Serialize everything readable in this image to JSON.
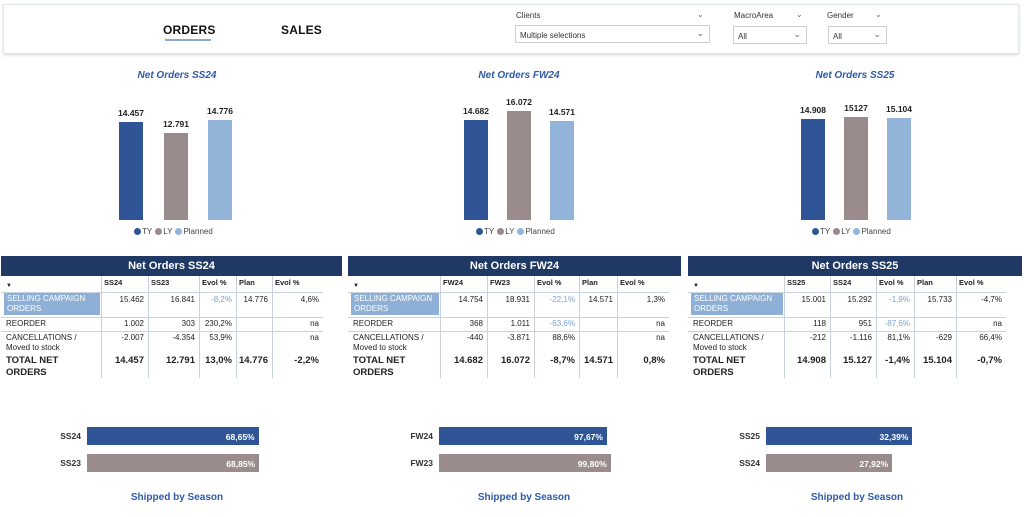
{
  "header": {
    "tabs": [
      {
        "label": "ORDERS",
        "active": true
      },
      {
        "label": "SALES",
        "active": false
      }
    ],
    "filters": [
      {
        "title": "Clients",
        "value": "Multiple selections"
      },
      {
        "title": "MacroArea",
        "value": "All"
      },
      {
        "title": "Gender",
        "value": "All"
      }
    ]
  },
  "colors": {
    "ty": "#2f5597",
    "ly": "#9a8c8c",
    "planned": "#92b4d8",
    "table_head": "#1f3864",
    "accent": "#2e5aa8"
  },
  "legend": {
    "ty": "TY",
    "ly": "LY",
    "planned": "Planned"
  },
  "icons": {
    "chevron": "chevron-down-icon",
    "sort": "sort-arrow-icon"
  },
  "chart_data": [
    {
      "type": "bar",
      "title": "Net Orders SS24",
      "categories": [
        "TY",
        "LY",
        "Planned"
      ],
      "values": [
        14457,
        12791,
        14776
      ],
      "labels": [
        "14.457",
        "12.791",
        "14.776"
      ],
      "ylim": [
        0,
        16072
      ]
    },
    {
      "type": "bar",
      "title": "Net Orders FW24",
      "categories": [
        "TY",
        "LY",
        "Planned"
      ],
      "values": [
        14682,
        16072,
        14571
      ],
      "labels": [
        "14.682",
        "16.072",
        "14.571"
      ],
      "ylim": [
        0,
        16072
      ]
    },
    {
      "type": "bar",
      "title": "Net Orders SS25",
      "categories": [
        "TY",
        "LY",
        "Planned"
      ],
      "values": [
        14908,
        15127,
        15104
      ],
      "labels": [
        "14.908",
        "15127",
        "15.104"
      ],
      "ylim": [
        0,
        16072
      ]
    },
    {
      "type": "bar",
      "title": "Shipped by Season",
      "orientation": "horizontal",
      "categories": [
        "SS24",
        "SS23"
      ],
      "values": [
        68.65,
        68.85
      ],
      "labels": [
        "68,65%",
        "68,85%"
      ],
      "xlim": [
        0,
        100
      ]
    },
    {
      "type": "bar",
      "title": "Shipped by Season",
      "orientation": "horizontal",
      "categories": [
        "FW24",
        "FW23"
      ],
      "values": [
        97.67,
        99.8
      ],
      "labels": [
        "97,67%",
        "99,80%"
      ],
      "xlim": [
        0,
        100
      ]
    },
    {
      "type": "bar",
      "title": "Shipped by Season",
      "orientation": "horizontal",
      "categories": [
        "SS25",
        "SS24"
      ],
      "values": [
        32.39,
        27.92
      ],
      "labels": [
        "32,39%",
        "27,92%"
      ],
      "xlim": [
        0,
        100
      ]
    }
  ],
  "tables": [
    {
      "title": "Net Orders SS24",
      "headers": [
        "",
        "SS24",
        "SS23",
        "Evol %",
        "Plan",
        "Evol %"
      ],
      "rows": [
        [
          "SELLING CAMPAIGN ORDERS",
          "15.462",
          "16.841",
          "-8,2%",
          "14.776",
          "4,6%"
        ],
        [
          "REORDER",
          "1.002",
          "303",
          "230,2%",
          "",
          "na"
        ],
        [
          "CANCELLATIONS / Moved to stock",
          "-2.007",
          "-4.354",
          "53,9%",
          "",
          "na"
        ],
        [
          "TOTAL NET ORDERS",
          "14.457",
          "12.791",
          "13,0%",
          "14.776",
          "-2,2%"
        ]
      ]
    },
    {
      "title": "Net Orders FW24",
      "headers": [
        "",
        "FW24",
        "FW23",
        "Evol %",
        "Plan",
        "Evol %"
      ],
      "rows": [
        [
          "SELLING CAMPAIGN ORDERS",
          "14.754",
          "18.931",
          "-22,1%",
          "14.571",
          "1,3%"
        ],
        [
          "REORDER",
          "368",
          "1.011",
          "-63,6%",
          "",
          "na"
        ],
        [
          "CANCELLATIONS / Moved to stock",
          "-440",
          "-3.871",
          "88,6%",
          "",
          "na"
        ],
        [
          "TOTAL NET ORDERS",
          "14.682",
          "16.072",
          "-8,7%",
          "14.571",
          "0,8%"
        ]
      ]
    },
    {
      "title": "Net Orders SS25",
      "headers": [
        "",
        "SS25",
        "SS24",
        "Evol %",
        "Plan",
        "Evol %"
      ],
      "rows": [
        [
          "SELLING CAMPAIGN ORDERS",
          "15.001",
          "15.292",
          "-1,9%",
          "15.733",
          "-4,7%"
        ],
        [
          "REORDER",
          "118",
          "951",
          "-87,6%",
          "",
          "na"
        ],
        [
          "CANCELLATIONS / Moved to stock",
          "-212",
          "-1.116",
          "81,1%",
          "-629",
          "66,4%"
        ],
        [
          "TOTAL NET ORDERS",
          "14.908",
          "15.127",
          "-1,4%",
          "15.104",
          "-0,7%"
        ]
      ]
    }
  ]
}
